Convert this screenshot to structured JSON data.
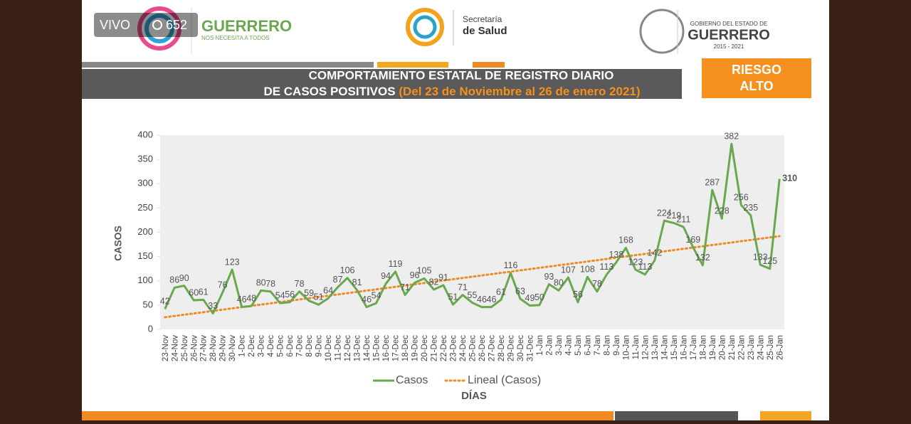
{
  "stream": {
    "live": "VIVO",
    "viewers": 652
  },
  "header": {
    "brand": "GUERRERO",
    "brand_tagline": "NOS NECESITA A TODOS",
    "ministry_line1": "Secretaría",
    "ministry_line2": "de Salud",
    "gov_line1": "GOBIERNO DEL ESTADO DE",
    "gov_line2": "GUERRERO",
    "gov_years": "2015 - 2021"
  },
  "banner": {
    "title_line1": "COMPORTAMIENTO ESTATAL DE REGISTRO DIARIO",
    "title_line2": "DE CASOS POSITIVOS",
    "title_range": "(Del 23 de Noviembre al 26 de enero 2021)",
    "risk_line1": "RIESGO",
    "risk_line2": "ALTO"
  },
  "chart_data": {
    "type": "line",
    "y_label": "CASOS",
    "x_label": "DÍAS",
    "categories": [
      "23-Nov",
      "24-Nov",
      "25-Nov",
      "26-Nov",
      "27-Nov",
      "28-Nov",
      "29-Nov",
      "30-Nov",
      "1-Dec",
      "2-Dec",
      "3-Dec",
      "4-Dec",
      "5-Dec",
      "6-Dec",
      "7-Dec",
      "8-Dec",
      "9-Dec",
      "10-Dec",
      "11-Dec",
      "12-Dec",
      "13-Dec",
      "14-Dec",
      "15-Dec",
      "16-Dec",
      "17-Dec",
      "18-Dec",
      "19-Dec",
      "20-Dec",
      "21-Dec",
      "22-Dec",
      "23-Dec",
      "24-Dec",
      "25-Dec",
      "26-Dec",
      "27-Dec",
      "28-Dec",
      "29-Dec",
      "30-Dec",
      "31-Dec",
      "1-Jan",
      "2-Jan",
      "3-Jan",
      "4-Jan",
      "5-Jan",
      "6-Jan",
      "7-Jan",
      "8-Jan",
      "9-Jan",
      "10-Jan",
      "11-Jan",
      "12-Jan",
      "13-Jan",
      "14-Jan",
      "15-Jan",
      "16-Jan",
      "17-Jan",
      "18-Jan",
      "19-Jan",
      "20-Jan",
      "21-Jan",
      "22-Jan",
      "23-Jan",
      "24-Jan",
      "25-Jan",
      "26-Jan"
    ],
    "series": [
      {
        "name": "Casos",
        "color": "#6aa84f",
        "values": [
          42,
          86,
          90,
          60,
          61,
          33,
          76,
          123,
          46,
          48,
          80,
          78,
          54,
          56,
          78,
          59,
          51,
          64,
          87,
          106,
          81,
          46,
          54,
          94,
          119,
          71,
          96,
          105,
          82,
          91,
          51,
          71,
          55,
          46,
          46,
          61,
          116,
          63,
          49,
          50,
          93,
          80,
          107,
          56,
          108,
          78,
          113,
          138,
          168,
          123,
          113,
          142,
          224,
          219,
          211,
          169,
          132,
          287,
          228,
          382,
          256,
          235,
          133,
          125,
          310
        ]
      }
    ],
    "trend": {
      "name": "Lineal (Casos)",
      "color": "#f08a24",
      "start": 25,
      "end": 192
    },
    "ylim": [
      0,
      400
    ],
    "yticks": [
      0,
      50,
      100,
      150,
      200,
      250,
      300,
      350,
      400
    ]
  }
}
